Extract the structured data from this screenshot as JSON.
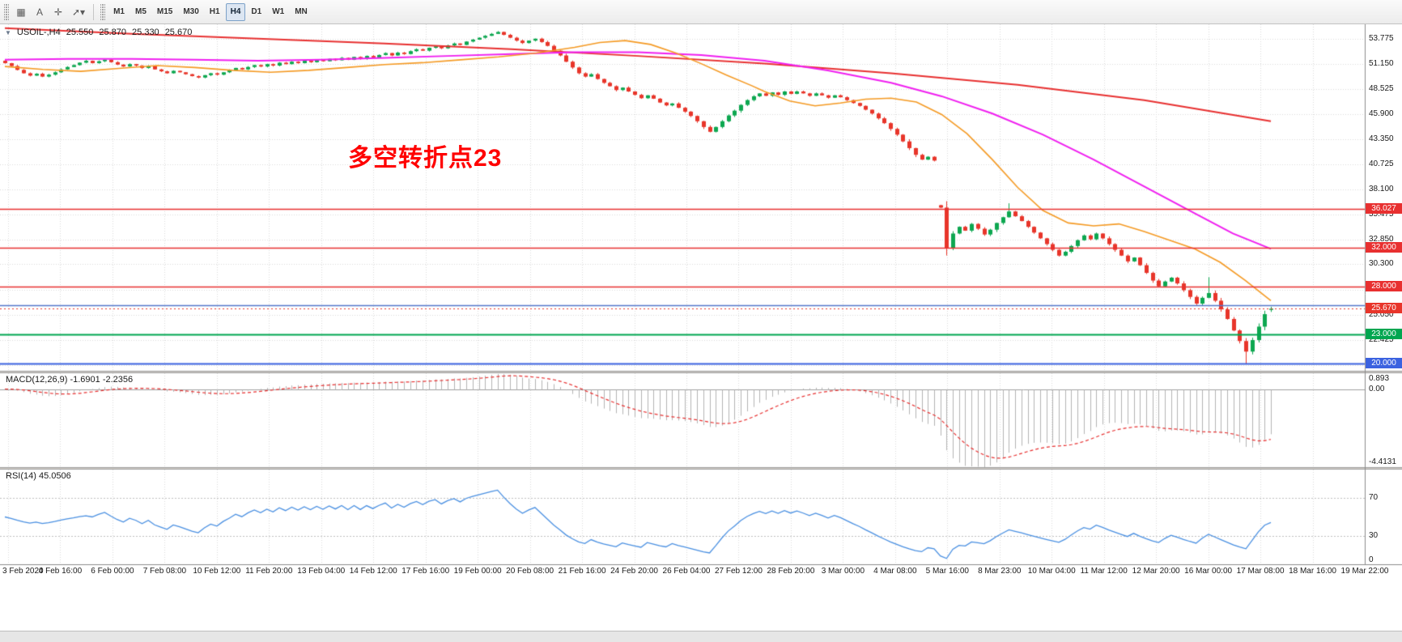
{
  "toolbar": {
    "tools": [
      {
        "name": "grid-tool",
        "glyph": "▦"
      },
      {
        "name": "text-tool",
        "glyph": "A"
      },
      {
        "name": "crosshair-tool",
        "glyph": "✛"
      },
      {
        "name": "arrow-tools-dropdown",
        "glyph": "➚",
        "dropdown": "▾"
      }
    ],
    "timeframes": [
      "M1",
      "M5",
      "M15",
      "M30",
      "H1",
      "H4",
      "D1",
      "W1",
      "MN"
    ],
    "active_timeframe": "H4"
  },
  "chart_data": {
    "type": "candlestick",
    "symbol": "USOIL-",
    "timeframe": "H4",
    "header": {
      "symbol_period": "USOIL-,H4",
      "open": "25.550",
      "high": "25.870",
      "low": "25.330",
      "close": "25.670"
    },
    "annotation": {
      "text": "多空转折点23",
      "color": "#ff0000"
    },
    "price_range": {
      "min": 19.2,
      "max": 55.3
    },
    "y_axis_labels": [
      "53.775",
      "51.150",
      "48.525",
      "45.900",
      "43.350",
      "40.725",
      "38.100",
      "35.475",
      "32.850",
      "30.300",
      "27.675",
      "25.050",
      "22.425",
      "19.800"
    ],
    "x_axis_labels": [
      "3 Feb 2020",
      "4 Feb 16:00",
      "6 Feb 00:00",
      "7 Feb 08:00",
      "10 Feb 12:00",
      "11 Feb 20:00",
      "13 Feb 04:00",
      "14 Feb 12:00",
      "17 Feb 16:00",
      "19 Feb 00:00",
      "20 Feb 08:00",
      "21 Feb 16:00",
      "24 Feb 20:00",
      "26 Feb 04:00",
      "27 Feb 12:00",
      "28 Feb 20:00",
      "3 Mar 00:00",
      "4 Mar 08:00",
      "5 Mar 16:00",
      "8 Mar 23:00",
      "10 Mar 04:00",
      "11 Mar 12:00",
      "12 Mar 20:00",
      "16 Mar 00:00",
      "17 Mar 08:00",
      "18 Mar 16:00",
      "19 Mar 22:00"
    ],
    "candles": {
      "up_color": "#0da750",
      "down_color": "#e8352a",
      "closes": [
        51.25,
        50.95,
        50.55,
        50.2,
        49.95,
        50.15,
        49.85,
        50.05,
        50.3,
        50.6,
        50.85,
        51.05,
        51.3,
        51.5,
        51.25,
        51.45,
        51.6,
        51.35,
        51.1,
        50.9,
        51.15,
        51.0,
        50.75,
        50.95,
        50.6,
        50.4,
        50.2,
        50.45,
        50.3,
        50.1,
        49.9,
        49.75,
        50.0,
        50.2,
        50.05,
        50.3,
        50.5,
        50.75,
        50.6,
        50.85,
        51.05,
        50.9,
        51.15,
        51.0,
        51.3,
        51.15,
        51.4,
        51.25,
        51.5,
        51.35,
        51.6,
        51.45,
        51.7,
        51.55,
        51.8,
        51.6,
        51.9,
        51.7,
        52.0,
        51.85,
        52.1,
        52.3,
        52.05,
        52.35,
        52.2,
        52.5,
        52.7,
        52.55,
        52.85,
        53.0,
        52.8,
        53.1,
        53.3,
        53.15,
        53.5,
        53.7,
        53.9,
        54.1,
        54.3,
        54.5,
        54.2,
        53.9,
        53.6,
        53.35,
        53.6,
        53.8,
        53.45,
        53.05,
        52.55,
        52.05,
        51.4,
        50.8,
        50.2,
        49.85,
        50.1,
        49.6,
        49.2,
        48.85,
        48.45,
        48.7,
        48.3,
        47.95,
        47.6,
        47.9,
        47.55,
        47.15,
        46.85,
        47.05,
        46.6,
        46.2,
        45.75,
        45.2,
        44.6,
        44.1,
        44.6,
        45.2,
        45.8,
        46.3,
        46.9,
        47.4,
        47.8,
        48.1,
        47.85,
        48.2,
        47.95,
        48.3,
        48.05,
        48.3,
        48.1,
        47.85,
        48.1,
        47.9,
        47.65,
        47.9,
        47.7,
        47.4,
        47.1,
        46.8,
        46.4,
        46.0,
        45.5,
        45.0,
        44.4,
        43.8,
        43.1,
        42.4,
        41.7,
        41.2,
        41.5,
        41.1,
        36.2,
        32.0,
        33.5,
        34.2,
        33.8,
        34.5,
        34.0,
        33.4,
        33.9,
        34.6,
        35.2,
        35.8,
        35.3,
        34.8,
        34.2,
        33.6,
        33.0,
        32.4,
        31.8,
        31.2,
        31.6,
        32.2,
        32.8,
        33.3,
        32.9,
        33.5,
        33.0,
        32.4,
        31.8,
        31.2,
        30.6,
        31.0,
        30.2,
        29.4,
        28.6,
        28.0,
        28.5,
        28.9,
        28.3,
        27.6,
        26.9,
        26.2,
        26.8,
        27.3,
        26.5,
        25.6,
        24.6,
        23.4,
        22.3,
        21.2,
        22.4,
        23.8,
        25.1,
        25.67
      ],
      "open_overrides": {
        "150": 36.45,
        "203": 25.55
      },
      "high_overrides": {
        "161": 36.65,
        "193": 28.95,
        "203": 25.87
      },
      "low_overrides": {
        "199": 19.95,
        "203": 25.33
      }
    },
    "moving_averages": [
      {
        "name": "ma-slow",
        "color": "#e83030",
        "width": 2,
        "points": [
          [
            0,
            54.9
          ],
          [
            0.1,
            54.3
          ],
          [
            0.2,
            53.8
          ],
          [
            0.3,
            53.3
          ],
          [
            0.4,
            52.7
          ],
          [
            0.5,
            52.0
          ],
          [
            0.6,
            51.2
          ],
          [
            0.7,
            50.2
          ],
          [
            0.8,
            49.0
          ],
          [
            0.9,
            47.4
          ],
          [
            1,
            45.2
          ]
        ]
      },
      {
        "name": "ma-medium",
        "color": "#f01ff0",
        "width": 2,
        "points": [
          [
            0,
            51.6
          ],
          [
            0.05,
            51.7
          ],
          [
            0.1,
            51.7
          ],
          [
            0.15,
            51.6
          ],
          [
            0.2,
            51.5
          ],
          [
            0.25,
            51.6
          ],
          [
            0.3,
            51.8
          ],
          [
            0.35,
            52.0
          ],
          [
            0.4,
            52.2
          ],
          [
            0.45,
            52.4
          ],
          [
            0.5,
            52.4
          ],
          [
            0.55,
            52.1
          ],
          [
            0.6,
            51.5
          ],
          [
            0.65,
            50.5
          ],
          [
            0.7,
            49.2
          ],
          [
            0.74,
            47.8
          ],
          [
            0.78,
            46.0
          ],
          [
            0.82,
            43.8
          ],
          [
            0.86,
            41.2
          ],
          [
            0.9,
            38.4
          ],
          [
            0.94,
            35.6
          ],
          [
            0.97,
            33.5
          ],
          [
            1,
            31.9
          ]
        ]
      },
      {
        "name": "ma-fast",
        "color": "#f59a23",
        "width": 1.6,
        "points": [
          [
            0,
            50.9
          ],
          [
            0.03,
            50.6
          ],
          [
            0.06,
            50.4
          ],
          [
            0.09,
            50.7
          ],
          [
            0.12,
            51.0
          ],
          [
            0.15,
            50.8
          ],
          [
            0.18,
            50.5
          ],
          [
            0.21,
            50.3
          ],
          [
            0.24,
            50.5
          ],
          [
            0.27,
            50.8
          ],
          [
            0.3,
            51.1
          ],
          [
            0.33,
            51.3
          ],
          [
            0.36,
            51.6
          ],
          [
            0.39,
            51.9
          ],
          [
            0.42,
            52.3
          ],
          [
            0.45,
            52.9
          ],
          [
            0.47,
            53.4
          ],
          [
            0.49,
            53.6
          ],
          [
            0.51,
            53.2
          ],
          [
            0.53,
            52.3
          ],
          [
            0.55,
            51.2
          ],
          [
            0.57,
            50.0
          ],
          [
            0.59,
            48.9
          ],
          [
            0.6,
            48.3
          ],
          [
            0.62,
            47.3
          ],
          [
            0.64,
            46.8
          ],
          [
            0.66,
            47.1
          ],
          [
            0.68,
            47.5
          ],
          [
            0.7,
            47.6
          ],
          [
            0.72,
            47.2
          ],
          [
            0.74,
            45.9
          ],
          [
            0.76,
            43.9
          ],
          [
            0.78,
            41.2
          ],
          [
            0.8,
            38.3
          ],
          [
            0.82,
            35.9
          ],
          [
            0.84,
            34.6
          ],
          [
            0.86,
            34.3
          ],
          [
            0.88,
            34.5
          ],
          [
            0.9,
            33.7
          ],
          [
            0.92,
            32.8
          ],
          [
            0.94,
            31.9
          ],
          [
            0.96,
            30.5
          ],
          [
            0.98,
            28.6
          ],
          [
            1,
            26.5
          ]
        ]
      }
    ],
    "levels": [
      {
        "price": 36.027,
        "label": "36.027",
        "color": "#e83030",
        "width": 1.5,
        "box": true
      },
      {
        "price": 32.0,
        "label": "32.000",
        "color": "#e83030",
        "width": 1.5,
        "box": true
      },
      {
        "price": 28.0,
        "label": "28.000",
        "color": "#e83030",
        "width": 1.5,
        "box": true
      },
      {
        "price": 26.0,
        "label": "",
        "color": "#5577cc",
        "width": 1.3,
        "box": false
      },
      {
        "price": 23.0,
        "label": "23.000",
        "color": "#00a650",
        "width": 1.8,
        "box": true
      },
      {
        "price": 20.0,
        "label": "20.000",
        "color": "#3b62e0",
        "width": 2.2,
        "box": true
      }
    ],
    "current_price": {
      "value": 25.67,
      "label": "25.670",
      "color": "#e8352a"
    },
    "indicators": {
      "macd": {
        "display": "MACD(12,26,9) -1.6901 -2.2356",
        "params": [
          12,
          26,
          9
        ],
        "value": -1.6901,
        "signal_value": -2.2356,
        "scale_max": 0.893,
        "scale_min": -4.4131,
        "scale_labels": [
          "0.893",
          "0.00",
          "-4.4131"
        ],
        "histogram_color": "#b4b4b4",
        "signal_color": "#e83030"
      },
      "rsi": {
        "display": "RSI(14) 45.0506",
        "period": 14,
        "value": 45.0506,
        "levels": [
          70,
          30
        ],
        "scale_labels": [
          "70",
          "30",
          "0"
        ],
        "line_color": "#4a90e2",
        "level_color": "#c0c0c0"
      }
    }
  }
}
